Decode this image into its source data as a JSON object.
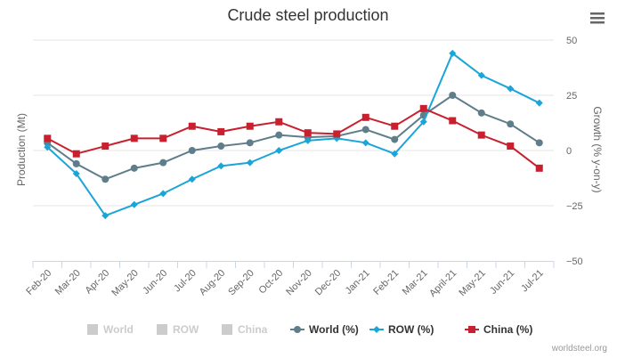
{
  "chart_data": {
    "type": "line",
    "title": "Crude steel production",
    "ylabel_left": "Production (Mt)",
    "ylabel_right": "Growth (% y-on-y)",
    "categories": [
      "Feb-20",
      "Mar-20",
      "Apr-20",
      "May-20",
      "Jun-20",
      "Jul-20",
      "Aug-20",
      "Sep-20",
      "Oct-20",
      "Nov-20",
      "Dec-20",
      "Jan-21",
      "Feb-21",
      "Mar-21",
      "April-21",
      "May-21",
      "Jun-21",
      "Jul-21"
    ],
    "y_right_ticks": [
      "50",
      "25",
      "0",
      "−25",
      "−50"
    ],
    "ylim_right": [
      -50,
      50
    ],
    "series": [
      {
        "name": "World (%)",
        "color": "#5f7d8a",
        "marker": "circle",
        "values": [
          3.5,
          -6,
          -13,
          -8,
          -5.5,
          0,
          2,
          3.5,
          7,
          6,
          6.5,
          9.5,
          5,
          16,
          25,
          17,
          12,
          3.5
        ]
      },
      {
        "name": "ROW (%)",
        "color": "#1aa5d9",
        "marker": "diamond",
        "values": [
          1.5,
          -10.5,
          -29.5,
          -24.5,
          -19.5,
          -13,
          -7,
          -5.5,
          0,
          4.5,
          5.5,
          3.5,
          -1.5,
          13,
          44,
          34,
          28,
          21.5
        ]
      },
      {
        "name": "China (%)",
        "color": "#c8202f",
        "marker": "square",
        "values": [
          5.5,
          -1.5,
          2,
          5.5,
          5.5,
          11,
          8.5,
          11,
          13,
          8,
          7.5,
          15,
          11,
          19,
          13.5,
          7,
          2,
          -8
        ]
      }
    ],
    "hidden_series": [
      "World",
      "ROW",
      "China"
    ],
    "legend_position": "bottom",
    "credit": "worldsteel.org"
  },
  "colors": {
    "hidden_legend": "#cccccc",
    "grid": "#e6e6e6",
    "axis_line": "#ccd6eb"
  },
  "menu_icon": "hamburger-menu-icon"
}
